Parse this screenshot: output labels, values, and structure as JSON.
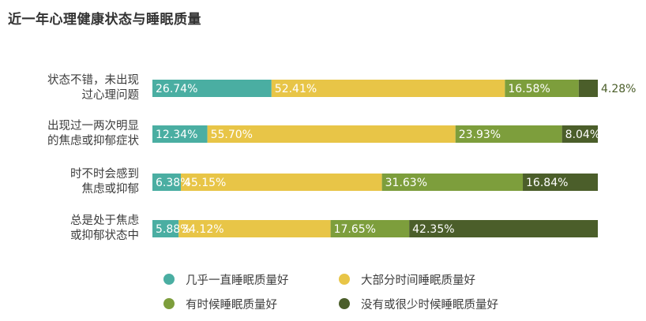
{
  "title": "近一年心理健康状态与睡眠质量",
  "chart_data": {
    "type": "bar",
    "orientation": "horizontal",
    "stacked": true,
    "title": "近一年心理健康状态与睡眠质量",
    "categories": [
      [
        "状态不错，未出现",
        "过心理问题"
      ],
      [
        "出现过一两次明显",
        "的焦虑或抑郁症状"
      ],
      [
        "时不时会感到",
        "焦虑或抑郁"
      ],
      [
        "总是处于焦虑",
        "或抑郁状态中"
      ]
    ],
    "series": [
      {
        "name": "几乎一直睡眠质量好",
        "color": "#4aaea2",
        "values": [
          26.74,
          12.34,
          6.38,
          5.88
        ]
      },
      {
        "name": "大部分时间睡眠质量好",
        "color": "#e8c547",
        "values": [
          52.41,
          55.7,
          45.15,
          34.12
        ]
      },
      {
        "name": "有时候睡眠质量好",
        "color": "#7d9e3c",
        "values": [
          16.58,
          23.93,
          31.63,
          17.65
        ]
      },
      {
        "name": "没有或很少时候睡眠质量好",
        "color": "#4b5e2a",
        "values": [
          4.28,
          8.04,
          16.84,
          42.35
        ]
      }
    ],
    "value_labels": [
      [
        "26.74%",
        "52.41%",
        "16.58%",
        "4.28%"
      ],
      [
        "12.34%",
        "55.70%",
        "23.93%",
        "8.04%"
      ],
      [
        "6.38%",
        "45.15%",
        "31.63%",
        "16.84%"
      ],
      [
        "5.88%",
        "34.12%",
        "17.65%",
        "42.35%"
      ]
    ],
    "xlim": [
      0,
      100
    ],
    "unit": "%",
    "grid": false,
    "legend_position": "bottom"
  }
}
